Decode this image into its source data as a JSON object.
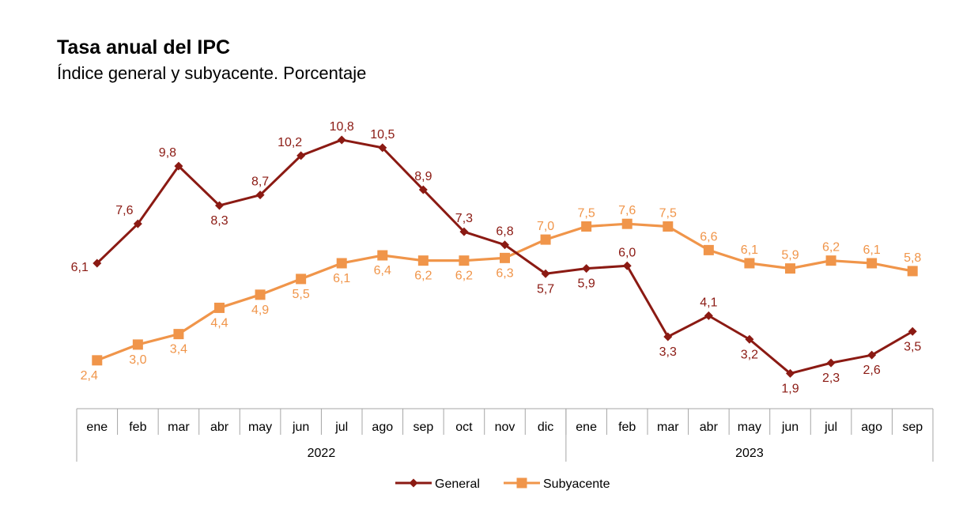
{
  "header": {
    "title": "Tasa anual del IPC",
    "subtitle": "Índice general y subyacente. Porcentaje"
  },
  "chart_data": {
    "type": "line",
    "title": "Tasa anual del IPC",
    "subtitle": "Índice general y subyacente. Porcentaje",
    "categories": [
      "ene",
      "feb",
      "mar",
      "abr",
      "may",
      "jun",
      "jul",
      "ago",
      "sep",
      "oct",
      "nov",
      "dic",
      "ene",
      "feb",
      "mar",
      "abr",
      "may",
      "jun",
      "jul",
      "ago",
      "sep"
    ],
    "groups": [
      {
        "label": "2022",
        "count": 12
      },
      {
        "label": "2023",
        "count": 9
      }
    ],
    "series": [
      {
        "name": "General",
        "color": "#8b1a13",
        "marker": "diamond",
        "values": [
          6.1,
          7.6,
          9.8,
          8.3,
          8.7,
          10.2,
          10.8,
          10.5,
          8.9,
          7.3,
          6.8,
          5.7,
          5.9,
          6.0,
          3.3,
          4.1,
          3.2,
          1.9,
          2.3,
          2.6,
          3.5
        ],
        "labels": [
          "6,1",
          "7,6",
          "9,8",
          "8,3",
          "8,7",
          "10,2",
          "10,8",
          "10,5",
          "8,9",
          "7,3",
          "6,8",
          "5,7",
          "5,9",
          "6,0",
          "3,3",
          "4,1",
          "3,2",
          "1,9",
          "2,3",
          "2,6",
          "3,5"
        ]
      },
      {
        "name": "Subyacente",
        "color": "#f0954a",
        "marker": "square",
        "values": [
          2.4,
          3.0,
          3.4,
          4.4,
          4.9,
          5.5,
          6.1,
          6.4,
          6.2,
          6.2,
          6.3,
          7.0,
          7.5,
          7.6,
          7.5,
          6.6,
          6.1,
          5.9,
          6.2,
          6.1,
          5.8
        ],
        "labels": [
          "2,4",
          "3,0",
          "3,4",
          "4,4",
          "4,9",
          "5,5",
          "6,1",
          "6,4",
          "6,2",
          "6,2",
          "6,3",
          "7,0",
          "7,5",
          "7,6",
          "7,5",
          "6,6",
          "6,1",
          "5,9",
          "6,2",
          "6,1",
          "5,8"
        ]
      }
    ],
    "ylim": [
      0,
      12
    ],
    "grid": false,
    "legend_position": "bottom"
  }
}
